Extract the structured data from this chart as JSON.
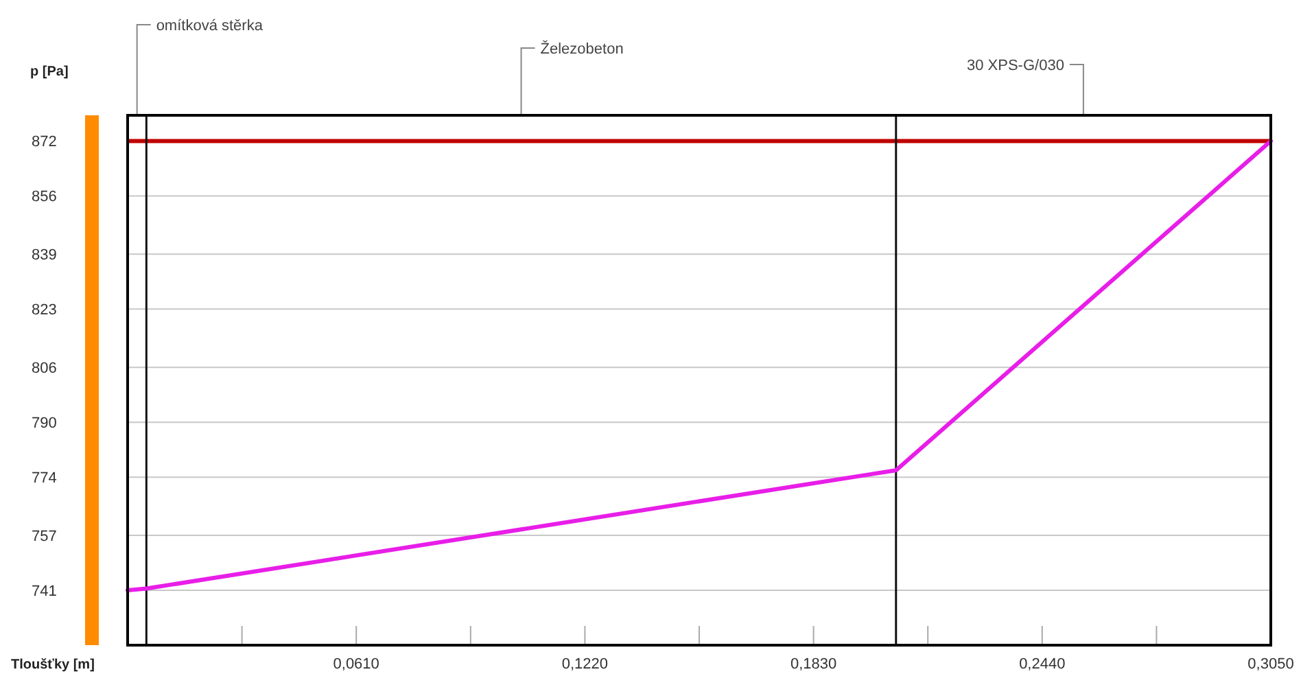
{
  "chart_data": {
    "type": "line",
    "ylabel": "p [Pa]",
    "xlabel": "Tloušťky [m]",
    "x": [
      0,
      0.005,
      0.205,
      0.305
    ],
    "series": [
      {
        "color": "#e81ee8",
        "values": [
          741,
          741.5,
          776,
          872
        ]
      }
    ],
    "xlim": [
      0,
      0.305
    ],
    "ylim": [
      725,
      879.5
    ],
    "xticks": [
      {
        "value": 0.0305,
        "label": null
      },
      {
        "value": 0.061,
        "label": "0,0610"
      },
      {
        "value": 0.0915,
        "label": null
      },
      {
        "value": 0.122,
        "label": "0,1220"
      },
      {
        "value": 0.1525,
        "label": null
      },
      {
        "value": 0.183,
        "label": "0,1830"
      },
      {
        "value": 0.2135,
        "label": null
      },
      {
        "value": 0.244,
        "label": "0,2440"
      },
      {
        "value": 0.2745,
        "label": null
      },
      {
        "value": 0.305,
        "label": "0,3050"
      }
    ],
    "yticks": [
      741,
      757,
      774,
      790,
      806,
      823,
      839,
      856,
      872
    ],
    "grid": "y",
    "marker": "none",
    "line_style": "solid",
    "ref_lines": [
      {
        "axis": "y",
        "value": 872,
        "color": "#c00000"
      },
      {
        "axis": "x",
        "value": 0.005,
        "color": "#111111"
      },
      {
        "axis": "x",
        "value": 0.205,
        "color": "#111111"
      }
    ],
    "annotations": [
      "omítková stěrka",
      "Železobeton",
      "30 XPS-G/030"
    ]
  }
}
